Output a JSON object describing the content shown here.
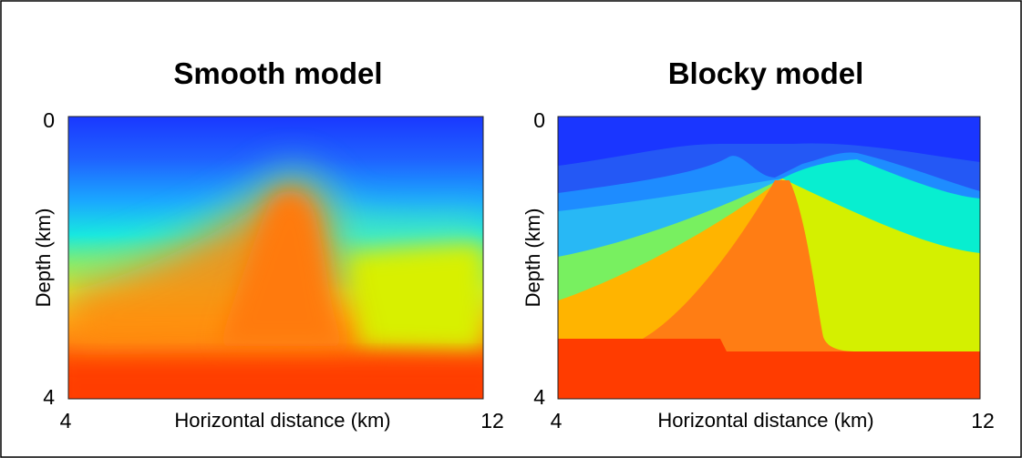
{
  "panels": [
    {
      "title": "Smooth model",
      "x_label": "Horizontal distance (km)",
      "y_label": "Depth (km)",
      "xticks": [
        4,
        12
      ],
      "yticks": [
        0,
        4
      ]
    },
    {
      "title": "Blocky model",
      "x_label": "Horizontal distance (km)",
      "y_label": "Depth (km)",
      "xticks": [
        4,
        12
      ],
      "yticks": [
        0,
        4
      ]
    }
  ]
}
